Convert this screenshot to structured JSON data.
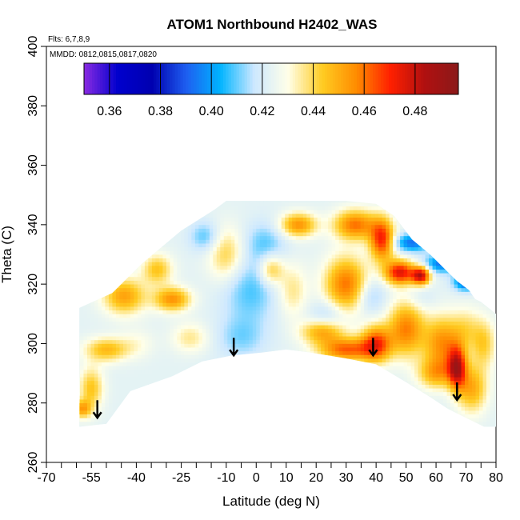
{
  "chart_data": {
    "type": "heatmap",
    "title": "ATOM1 Northbound H2402_WAS",
    "flights_label": "Flts: 6,7,8,9",
    "dates_label": "MMDD: 0812,0815,0817,0820",
    "xlabel": "Latitude (deg N)",
    "ylabel": "Theta (C)",
    "xlim": [
      -70,
      80
    ],
    "ylim": [
      260,
      400
    ],
    "x_ticks": [
      -70,
      -55,
      -40,
      -25,
      -10,
      0,
      10,
      20,
      30,
      40,
      50,
      60,
      70,
      80
    ],
    "x_tick_labels": [
      "-70",
      "-55",
      "-40",
      "-25",
      "-10",
      "0",
      "10",
      "20",
      "30",
      "40",
      "50",
      "60",
      "70",
      "80"
    ],
    "x_minor_ticks": [
      -65,
      -60,
      -50,
      -45,
      -35,
      -30,
      -20,
      -15,
      -5,
      5,
      15,
      25,
      35,
      45,
      55,
      65,
      75
    ],
    "y_ticks": [
      260,
      280,
      300,
      320,
      340,
      360,
      380,
      400
    ],
    "y_tick_labels": [
      "260",
      "280",
      "300",
      "320",
      "340",
      "360",
      "380",
      "400"
    ],
    "colorbar": {
      "range": [
        0.35,
        0.497
      ],
      "ticks": [
        0.36,
        0.38,
        0.4,
        0.42,
        0.44,
        0.46,
        0.48
      ],
      "tick_labels": [
        "0.36",
        "0.38",
        "0.40",
        "0.42",
        "0.44",
        "0.46",
        "0.48"
      ],
      "separators": [
        0.36,
        0.38,
        0.4,
        0.42,
        0.44,
        0.46,
        0.48
      ],
      "colors": [
        "#8a2be2",
        "#0000cd",
        "#0000b0",
        "#1e5ef0",
        "#00b4ff",
        "#cde8ff",
        "#ffffe8",
        "#ffcc22",
        "#ff8c00",
        "#ff2000",
        "#b01010",
        "#8b1a1a"
      ]
    },
    "domain_outline": {
      "top": [
        [
          -59,
          312
        ],
        [
          -48,
          317
        ],
        [
          -38,
          327
        ],
        [
          -25,
          338
        ],
        [
          -14,
          345
        ],
        [
          -10,
          348
        ],
        [
          10,
          348
        ],
        [
          20,
          348
        ],
        [
          30,
          348
        ],
        [
          40,
          347
        ],
        [
          46,
          343
        ],
        [
          52,
          335
        ],
        [
          58,
          330
        ],
        [
          63,
          325
        ],
        [
          67,
          321
        ],
        [
          71,
          318
        ],
        [
          73,
          315
        ],
        [
          75,
          314
        ],
        [
          80,
          310
        ]
      ],
      "bottom": [
        [
          -59,
          272
        ],
        [
          -50,
          273
        ],
        [
          -42,
          284
        ],
        [
          -28,
          289
        ],
        [
          -18,
          294
        ],
        [
          -8,
          296
        ],
        [
          2,
          297
        ],
        [
          10,
          298
        ],
        [
          18,
          297
        ],
        [
          30,
          295
        ],
        [
          40,
          293
        ],
        [
          50,
          287
        ],
        [
          58,
          282
        ],
        [
          64,
          278
        ],
        [
          68,
          276
        ],
        [
          72,
          274
        ],
        [
          76,
          272
        ],
        [
          80,
          272
        ]
      ]
    },
    "arrows": [
      {
        "lat": -53,
        "theta": 275
      },
      {
        "lat": -7.5,
        "theta": 296
      },
      {
        "lat": 39,
        "theta": 296
      },
      {
        "lat": 67,
        "theta": 281
      }
    ],
    "features": [
      {
        "lat": -28,
        "theta": 315,
        "value": 0.455,
        "w": 6,
        "h": 4
      },
      {
        "lat": -44,
        "theta": 316,
        "value": 0.452,
        "w": 7,
        "h": 6
      },
      {
        "lat": -50,
        "theta": 298,
        "value": 0.447,
        "w": 7,
        "h": 4
      },
      {
        "lat": -55,
        "theta": 285,
        "value": 0.445,
        "w": 4,
        "h": 7
      },
      {
        "lat": -40,
        "theta": 300,
        "value": 0.43,
        "w": 6,
        "h": 5
      },
      {
        "lat": -22,
        "theta": 302,
        "value": 0.436,
        "w": 6,
        "h": 5
      },
      {
        "lat": -15,
        "theta": 292,
        "value": 0.422,
        "w": 6,
        "h": 4
      },
      {
        "lat": -2,
        "theta": 318,
        "value": 0.408,
        "w": 9,
        "h": 11
      },
      {
        "lat": -5,
        "theta": 302,
        "value": 0.412,
        "w": 8,
        "h": 7
      },
      {
        "lat": 3,
        "theta": 334,
        "value": 0.41,
        "w": 7,
        "h": 7
      },
      {
        "lat": -10,
        "theta": 330,
        "value": 0.442,
        "w": 6,
        "h": 9
      },
      {
        "lat": -17,
        "theta": 336,
        "value": 0.408,
        "w": 5,
        "h": 5
      },
      {
        "lat": 14,
        "theta": 340,
        "value": 0.455,
        "w": 6,
        "h": 4
      },
      {
        "lat": 12,
        "theta": 318,
        "value": 0.437,
        "w": 5,
        "h": 9
      },
      {
        "lat": 30,
        "theta": 320,
        "value": 0.46,
        "w": 7,
        "h": 9
      },
      {
        "lat": 38,
        "theta": 316,
        "value": 0.41,
        "w": 5,
        "h": 6
      },
      {
        "lat": 24,
        "theta": 310,
        "value": 0.413,
        "w": 6,
        "h": 5
      },
      {
        "lat": 30,
        "theta": 298,
        "value": 0.462,
        "w": 9,
        "h": 4
      },
      {
        "lat": 22,
        "theta": 304,
        "value": 0.45,
        "w": 7,
        "h": 4
      },
      {
        "lat": 33,
        "theta": 340,
        "value": 0.46,
        "w": 7,
        "h": 5
      },
      {
        "lat": 42,
        "theta": 335,
        "value": 0.47,
        "w": 4,
        "h": 7
      },
      {
        "lat": 48,
        "theta": 324,
        "value": 0.475,
        "w": 5,
        "h": 4
      },
      {
        "lat": 55,
        "theta": 323,
        "value": 0.478,
        "w": 3,
        "h": 3
      },
      {
        "lat": 40,
        "theta": 300,
        "value": 0.465,
        "w": 5,
        "h": 6
      },
      {
        "lat": 50,
        "theta": 305,
        "value": 0.458,
        "w": 6,
        "h": 9
      },
      {
        "lat": 62,
        "theta": 300,
        "value": 0.455,
        "w": 6,
        "h": 9
      },
      {
        "lat": 67,
        "theta": 292,
        "value": 0.475,
        "w": 3,
        "h": 7
      },
      {
        "lat": 72,
        "theta": 285,
        "value": 0.45,
        "w": 5,
        "h": 8
      },
      {
        "lat": 60,
        "theta": 290,
        "value": 0.448,
        "w": 6,
        "h": 5
      },
      {
        "lat": 70,
        "theta": 305,
        "value": 0.437,
        "w": 5,
        "h": 7
      },
      {
        "lat": 76,
        "theta": 300,
        "value": 0.442,
        "w": 4,
        "h": 8
      },
      {
        "lat": 52,
        "theta": 334,
        "value": 0.393,
        "w": 6,
        "h": 3
      },
      {
        "lat": 62,
        "theta": 327,
        "value": 0.393,
        "w": 6,
        "h": 3
      },
      {
        "lat": 70,
        "theta": 321,
        "value": 0.387,
        "w": 4,
        "h": 3
      },
      {
        "lat": 55,
        "theta": 315,
        "value": 0.418,
        "w": 5,
        "h": 4
      },
      {
        "lat": 5,
        "theta": 325,
        "value": 0.445,
        "w": 4,
        "h": 5
      },
      {
        "lat": -33,
        "theta": 325,
        "value": 0.445,
        "w": 5,
        "h": 5
      },
      {
        "lat": -58,
        "theta": 278,
        "value": 0.45,
        "w": 3,
        "h": 3
      }
    ]
  }
}
